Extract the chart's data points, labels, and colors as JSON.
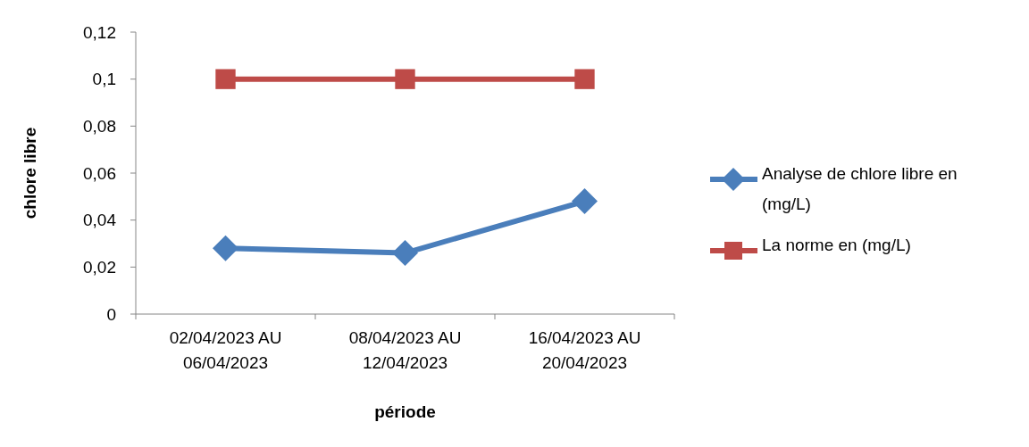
{
  "chart_data": {
    "type": "line",
    "xlabel": "période",
    "ylabel": "chlore libre",
    "categories": [
      "02/04/2023 AU 06/04/2023",
      "08/04/2023 AU 12/04/2023",
      "16/04/2023 AU 20/04/2023"
    ],
    "series": [
      {
        "name": "Analyse de chlore libre en (mg/L)",
        "color": "#4a7ebb",
        "marker": "diamond",
        "values": [
          0.028,
          0.026,
          0.048
        ]
      },
      {
        "name": "La norme en (mg/L)",
        "color": "#be4b48",
        "marker": "square",
        "values": [
          0.1,
          0.1,
          0.1
        ]
      }
    ],
    "ylim": [
      0,
      0.12
    ],
    "yticks": [
      {
        "value": 0,
        "label": "0"
      },
      {
        "value": 0.02,
        "label": "0,02"
      },
      {
        "value": 0.04,
        "label": "0,04"
      },
      {
        "value": 0.06,
        "label": "0,06"
      },
      {
        "value": 0.08,
        "label": "0,08"
      },
      {
        "value": 0.1,
        "label": "0,1"
      },
      {
        "value": 0.12,
        "label": "0,12"
      }
    ],
    "grid": false,
    "legend": "right"
  }
}
